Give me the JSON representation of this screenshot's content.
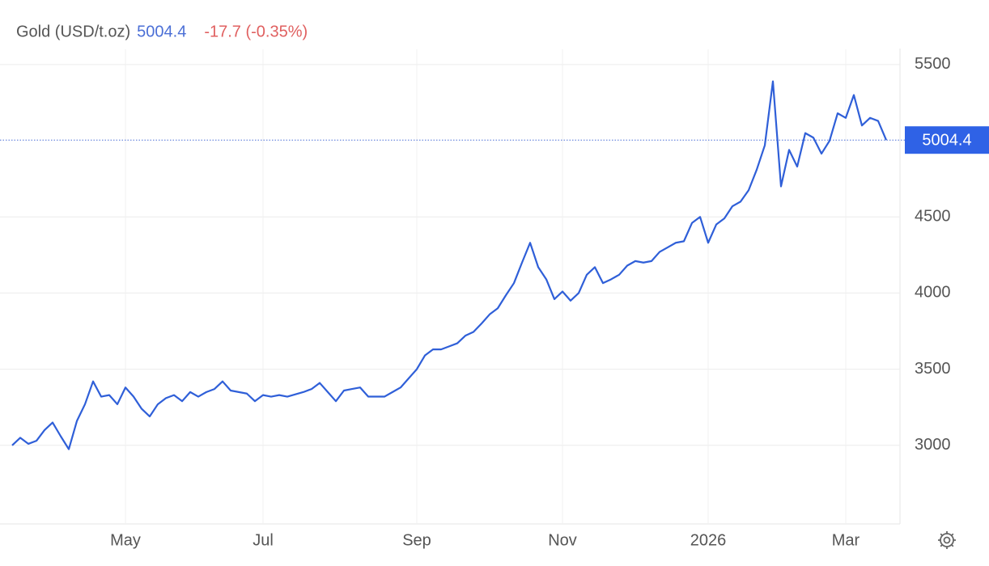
{
  "chart_data": {
    "type": "line",
    "price": 5004.4,
    "change": "-17.7 (-0.35%)",
    "categories": [
      null,
      null,
      null,
      null,
      null,
      null,
      null,
      null,
      null,
      null,
      null,
      null,
      null,
      null,
      "May",
      null,
      null,
      null,
      null,
      null,
      null,
      null,
      null,
      null,
      null,
      null,
      null,
      null,
      null,
      null,
      null,
      "Jul",
      null,
      null,
      null,
      null,
      null,
      null,
      null,
      null,
      null,
      null,
      null,
      null,
      null,
      null,
      null,
      null,
      null,
      null,
      "Sep",
      null,
      null,
      null,
      null,
      null,
      null,
      null,
      null,
      null,
      null,
      null,
      null,
      null,
      null,
      null,
      null,
      null,
      "Nov",
      null,
      null,
      null,
      null,
      null,
      null,
      null,
      null,
      null,
      null,
      null,
      null,
      null,
      null,
      null,
      null,
      null,
      "2026",
      null,
      null,
      null,
      null,
      null,
      null,
      null,
      null,
      null,
      null,
      null,
      null,
      null,
      null,
      null,
      null,
      "Mar",
      null,
      null,
      null,
      null,
      null
    ],
    "series": [
      {
        "name": "Gold (USD/t.oz)",
        "color": "#2f5fd8",
        "values": [
          3000,
          3050,
          3010,
          3030,
          3100,
          3150,
          3060,
          2975,
          3160,
          3270,
          3420,
          3320,
          3330,
          3270,
          3380,
          3320,
          3240,
          3190,
          3270,
          3310,
          3330,
          3290,
          3350,
          3320,
          3350,
          3370,
          3420,
          3360,
          3350,
          3340,
          3290,
          3330,
          3320,
          3330,
          3320,
          3335,
          3350,
          3370,
          3410,
          3350,
          3290,
          3360,
          3370,
          3380,
          3320,
          3320,
          3320,
          3350,
          3380,
          3440,
          3500,
          3590,
          3630,
          3630,
          3650,
          3670,
          3720,
          3745,
          3800,
          3860,
          3900,
          3985,
          4065,
          4200,
          4330,
          4170,
          4090,
          3960,
          4010,
          3950,
          4000,
          4120,
          4170,
          4065,
          4090,
          4120,
          4180,
          4210,
          4200,
          4210,
          4270,
          4300,
          4330,
          4340,
          4460,
          4500,
          4330,
          4450,
          4490,
          4570,
          4600,
          4675,
          4810,
          4970,
          5390,
          4700,
          4940,
          4830,
          5050,
          5020,
          4915,
          5000,
          5180,
          5150,
          5300,
          5100,
          5150,
          5130,
          5004.4
        ]
      }
    ],
    "ylim": [
      2500,
      5600
    ],
    "yticks": [
      3000,
      3500,
      4000,
      4500,
      5500
    ],
    "grid": true
  }
}
